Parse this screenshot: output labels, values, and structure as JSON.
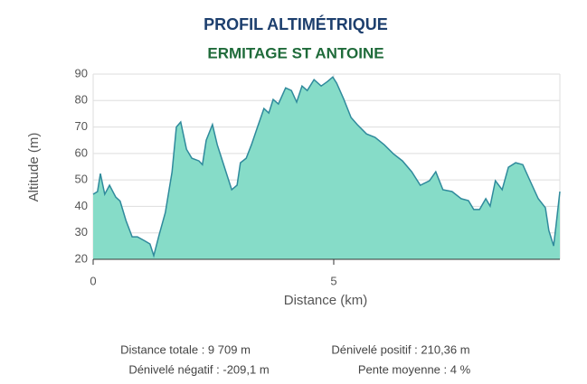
{
  "chart_data": {
    "type": "area",
    "title": "PROFIL ALTIMÉTRIQUE",
    "subtitle": "ERMITAGE ST ANTOINE",
    "x_label": "Distance (km)",
    "y_label": "Altitude (m)",
    "x": [
      0,
      0.09,
      0.15,
      0.24,
      0.34,
      0.47,
      0.56,
      0.68,
      0.81,
      0.92,
      1.07,
      1.18,
      1.26,
      1.37,
      1.5,
      1.64,
      1.73,
      1.82,
      1.94,
      2.05,
      2.2,
      2.27,
      2.35,
      2.48,
      2.58,
      2.73,
      2.88,
      2.99,
      3.06,
      3.18,
      3.29,
      3.42,
      3.55,
      3.65,
      3.74,
      3.85,
      4.0,
      4.12,
      4.23,
      4.34,
      4.45,
      4.59,
      4.74,
      4.87,
      4.98,
      5.06,
      5.21,
      5.36,
      5.49,
      5.68,
      5.86,
      6.05,
      6.24,
      6.43,
      6.62,
      6.8,
      6.99,
      7.12,
      7.27,
      7.46,
      7.65,
      7.8,
      7.91,
      8.03,
      8.16,
      8.25,
      8.36,
      8.5,
      8.63,
      8.78,
      8.93,
      9.08,
      9.25,
      9.4,
      9.47,
      9.57,
      9.62,
      9.7
    ],
    "values": [
      44.6,
      45.6,
      52.4,
      44.6,
      48,
      43.5,
      42,
      34.7,
      28.5,
      28.5,
      27,
      25.8,
      21.4,
      29.2,
      37.7,
      53,
      70,
      71.9,
      61.6,
      58.2,
      57.2,
      55.8,
      65,
      70.9,
      63.3,
      54.8,
      46.3,
      48,
      56.5,
      58.2,
      63.3,
      70.2,
      77,
      75.3,
      80.4,
      78.7,
      84.8,
      83.8,
      79.4,
      85.5,
      83.8,
      87.9,
      85.5,
      87.2,
      88.9,
      86.6,
      80.4,
      73.6,
      70.9,
      67.4,
      66.1,
      63.3,
      59.9,
      57.2,
      53.1,
      48,
      49.7,
      53.1,
      46.3,
      45.6,
      42.9,
      42.2,
      38.8,
      38.8,
      42.9,
      40.1,
      49.7,
      46.3,
      54.8,
      56.5,
      55.8,
      49.7,
      42.9,
      39.5,
      30.9,
      25.1,
      32.6,
      45.6
    ],
    "fill_color": "#86dcc8",
    "line_color": "#2f8a9c",
    "xlim": [
      0,
      9.7
    ],
    "ylim": [
      20,
      90
    ],
    "xticks": [
      0,
      5
    ],
    "yticks": [
      20,
      30,
      40,
      50,
      60,
      70,
      80,
      90
    ],
    "grid": true
  },
  "stats": [
    "Distance totale : 9 709 m",
    "Dénivelé positif : 210,36 m",
    "Dénivelé négatif : -209,1 m",
    "Pente moyenne : 4 %"
  ]
}
